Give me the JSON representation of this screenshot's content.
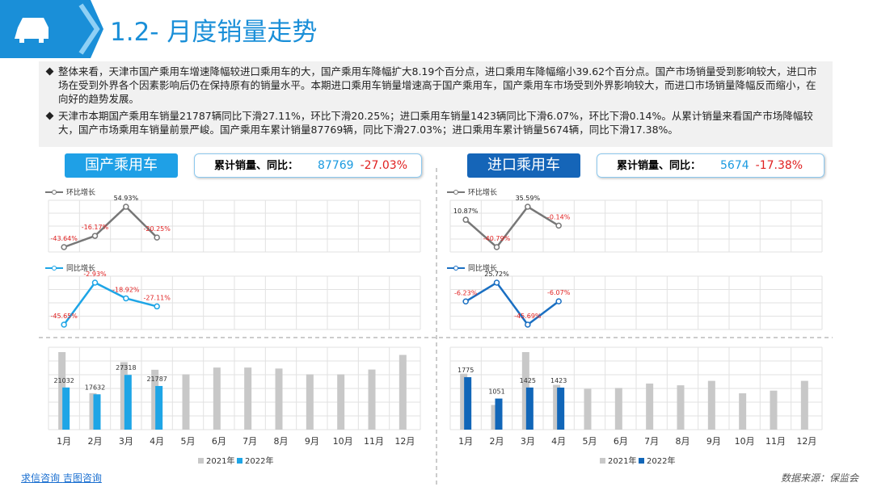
{
  "header": {
    "title": "1.2- 月度销量走势"
  },
  "bullets": [
    "整体来看，天津市国产乘用车增速降幅较进口乘用车的大，国产乘用车降幅扩大8.19个百分点，进口乘用车降幅缩小39.62个百分点。国产市场销量受到影响较大，进口市场在受到外界各个因素影响后仍在保持原有的销量水平。本期进口乘用车销量增速高于国产乘用车，国产乘用车市场受到外界影响较大，而进口市场销量降幅反而缩小，在向好的趋势发展。",
    "天津市本期国产乘用车销量21787辆同比下滑27.11%，环比下滑20.25%；进口乘用车销量1423辆同比下滑6.07%，环比下滑0.14%。从累计销量来看国产市场降幅较大，国产市场乘用车销量前景严峻。国产乘用车累计销量87769辆，同比下滑27.03%；进口乘用车累计销量5674辆，同比下滑17.38%。"
  ],
  "panels": [
    {
      "title": "国产乘用车",
      "summary_label": "累计销量、同比：",
      "total": 87769,
      "yoy": "-27.03%"
    },
    {
      "title": "进口乘用车",
      "summary_label": "累计销量、同比：",
      "total": 5674,
      "yoy": "-17.38%"
    }
  ],
  "chart_data": [
    {
      "type": "line",
      "series": [
        {
          "name": "环比增长",
          "color": "#777777",
          "values": [
            -43.64,
            -16.17,
            54.93,
            -20.25
          ],
          "value_labels": [
            "-43.64%",
            "-16.17%",
            "54.93%",
            "-20.25%"
          ]
        }
      ]
    },
    {
      "type": "line",
      "series": [
        {
          "name": "同比增长",
          "color": "#1ea5e6",
          "values": [
            -45.65,
            -2.93,
            -18.92,
            -27.11
          ],
          "value_labels": [
            "-45.65%",
            "-2.93%",
            "-18.92%",
            "-27.11%"
          ]
        }
      ]
    },
    {
      "type": "bar",
      "categories": [
        "1月",
        "2月",
        "3月",
        "4月",
        "5月",
        "6月",
        "7月",
        "8月",
        "9月",
        "10月",
        "11月",
        "12月"
      ],
      "series": [
        {
          "name": "2021年",
          "color": "#c8c8c8",
          "values": [
            38700,
            18200,
            33700,
            29890,
            27600,
            31000,
            31000,
            30500,
            27600,
            27600,
            30000,
            37300
          ]
        },
        {
          "name": "2022年",
          "color": "#1ea5e6",
          "values": [
            21032,
            17632,
            27318,
            21787,
            null,
            null,
            null,
            null,
            null,
            null,
            null,
            null
          ]
        }
      ]
    },
    {
      "type": "line",
      "series": [
        {
          "name": "环比增长",
          "color": "#777777",
          "values": [
            10.87,
            -40.79,
            35.59,
            -0.14
          ],
          "value_labels": [
            "10.87%",
            "-40.79%",
            "35.59%",
            "-0.14%"
          ]
        }
      ]
    },
    {
      "type": "line",
      "series": [
        {
          "name": "同比增长",
          "color": "#1a6fc2",
          "values": [
            -6.23,
            25.72,
            -45.69,
            -6.07
          ],
          "value_labels": [
            "-6.23%",
            "25.72%",
            "-45.69%",
            "-6.07%"
          ]
        }
      ]
    },
    {
      "type": "bar",
      "categories": [
        "1月",
        "2月",
        "3月",
        "4月",
        "5月",
        "6月",
        "7月",
        "8月",
        "9月",
        "10月",
        "11月",
        "12月"
      ],
      "series": [
        {
          "name": "2021年",
          "color": "#c8c8c8",
          "values": [
            1893,
            836,
            2624,
            1515,
            1380,
            1410,
            1560,
            1500,
            1650,
            1230,
            1320,
            1650
          ]
        },
        {
          "name": "2022年",
          "color": "#1166b8",
          "values": [
            1775,
            1051,
            1425,
            1423,
            null,
            null,
            null,
            null,
            null,
            null,
            null,
            null
          ]
        }
      ]
    }
  ],
  "footer": {
    "links": [
      "求信咨询",
      "吉图咨询"
    ],
    "source": "数据来源：保监会"
  }
}
